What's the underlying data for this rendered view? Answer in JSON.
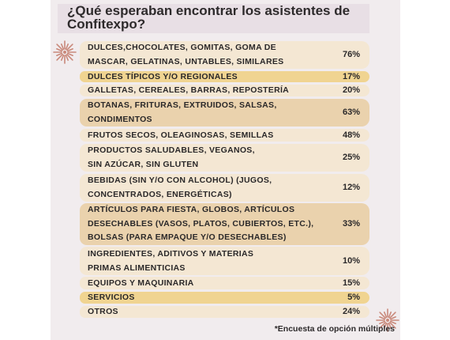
{
  "title_lines": [
    "¿Qué esperaban encontrar los asistentes de",
    "Confitexpo?"
  ],
  "footnote": "*Encuesta de opción múltiples",
  "colors": {
    "panel": "#f1ecee",
    "light_bar": "#f4e7d3",
    "tan_bar": "#ead2ad",
    "gold_bar": "#f0d491",
    "ornament": "#c9897b"
  },
  "chart_data": {
    "type": "table",
    "title": "¿Qué esperaban encontrar los asistentes de Confitexpo?",
    "rows": [
      {
        "label": "DULCES,CHOCOLATES, GOMITAS, GOMA DE\nMASCAR, GELATINAS, UNTABLES, SIMILARES",
        "value": 76,
        "display": "76%"
      },
      {
        "label": "DULCES TÍPICOS Y/O REGIONALES",
        "value": 17,
        "display": "17%"
      },
      {
        "label": "GALLETAS, CEREALES, BARRAS, REPOSTERÍA",
        "value": 20,
        "display": "20%"
      },
      {
        "label": "BOTANAS, FRITURAS, EXTRUIDOS, SALSAS,\nCONDIMENTOS",
        "value": 63,
        "display": "63%"
      },
      {
        "label": "FRUTOS SECOS, OLEAGINOSAS, SEMILLAS",
        "value": 48,
        "display": "48%"
      },
      {
        "label": "PRODUCTOS SALUDABLES, VEGANOS,\nSIN AZÚCAR, SIN GLUTEN",
        "value": 25,
        "display": "25%"
      },
      {
        "label": "BEBIDAS (SIN Y/O CON ALCOHOL) (JUGOS,\nCONCENTRADOS, ENERGÉTICAS)",
        "value": 12,
        "display": "12%"
      },
      {
        "label": "ARTÍCULOS PARA FIESTA, GLOBOS, ARTÍCULOS\nDESECHABLES (VASOS, PLATOS, CUBIERTOS, ETC.),\nBOLSAS (PARA EMPAQUE Y/O DESECHABLES)",
        "value": 33,
        "display": "33%"
      },
      {
        "label": "INGREDIENTES, ADITIVOS Y MATERIAS\nPRIMAS ALIMENTICIAS",
        "value": 10,
        "display": "10%"
      },
      {
        "label": "EQUIPOS Y MAQUINARIA",
        "value": 15,
        "display": "15%"
      },
      {
        "label": "SERVICIOS",
        "value": 5,
        "display": "5%"
      },
      {
        "label": "OTROS",
        "value": 24,
        "display": "24%"
      }
    ]
  }
}
